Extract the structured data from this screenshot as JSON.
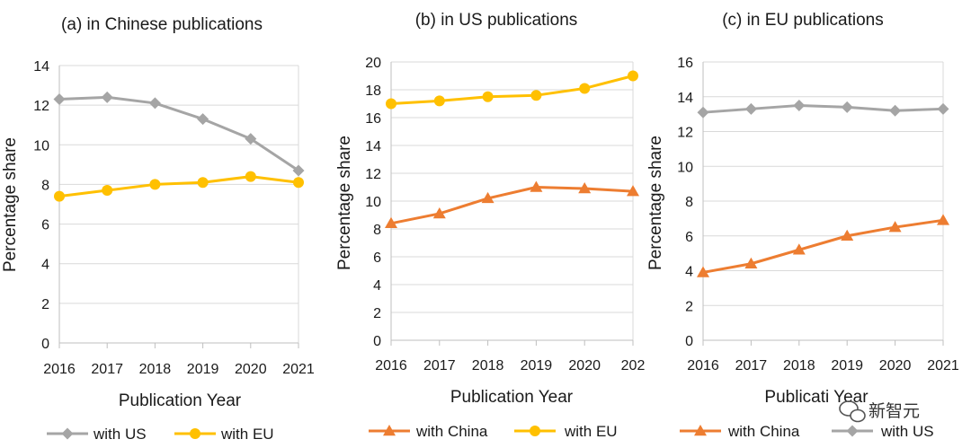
{
  "chart_data": [
    {
      "type": "line",
      "title": "(a) in Chinese publications",
      "xlabel": "Publication Year",
      "ylabel": "Percentage share",
      "x": [
        "2016",
        "2017",
        "2018",
        "2019",
        "2020",
        "2021"
      ],
      "y_ticks": [
        "0",
        "2",
        "4",
        "6",
        "8",
        "10",
        "12",
        "14"
      ],
      "ylim": [
        0,
        14
      ],
      "grid": true,
      "legend": "bottom",
      "series": [
        {
          "name": "with US",
          "color": "#a5a5a5",
          "marker": "diamond",
          "values": [
            12.3,
            12.4,
            12.1,
            11.3,
            10.3,
            8.7
          ]
        },
        {
          "name": "with EU",
          "color": "#ffc000",
          "marker": "circle",
          "values": [
            7.4,
            7.7,
            8.0,
            8.1,
            8.4,
            8.1
          ]
        }
      ]
    },
    {
      "type": "line",
      "title": "(b) in US publications",
      "xlabel": "Publication Year",
      "ylabel": "Percentage share",
      "x": [
        "2016",
        "2017",
        "2018",
        "2019",
        "2020",
        "202"
      ],
      "y_ticks": [
        "0",
        "2",
        "4",
        "6",
        "8",
        "10",
        "12",
        "14",
        "16",
        "18",
        "20"
      ],
      "ylim": [
        0,
        20
      ],
      "grid": true,
      "legend": "bottom",
      "series": [
        {
          "name": "with China",
          "color": "#ed7d31",
          "marker": "triangle",
          "values": [
            8.4,
            9.1,
            10.2,
            11.0,
            10.9,
            10.7
          ]
        },
        {
          "name": "with EU",
          "color": "#ffc000",
          "marker": "circle",
          "values": [
            17.0,
            17.2,
            17.5,
            17.6,
            18.1,
            19.0
          ]
        }
      ]
    },
    {
      "type": "line",
      "title": "(c) in EU publications",
      "xlabel": "Publicati  Year",
      "ylabel": "Percentage share",
      "x": [
        "2016",
        "2017",
        "2018",
        "2019",
        "2020",
        "2021"
      ],
      "y_ticks": [
        "0",
        "2",
        "4",
        "6",
        "8",
        "10",
        "12",
        "14",
        "16"
      ],
      "ylim": [
        0,
        16
      ],
      "grid": true,
      "legend": "bottom",
      "series": [
        {
          "name": "with China",
          "color": "#ed7d31",
          "marker": "triangle",
          "values": [
            3.9,
            4.4,
            5.2,
            6.0,
            6.5,
            6.9
          ]
        },
        {
          "name": "with US",
          "color": "#a5a5a5",
          "marker": "diamond",
          "values": [
            13.1,
            13.3,
            13.5,
            13.4,
            13.2,
            13.3
          ]
        }
      ]
    }
  ],
  "watermark": {
    "text": "新智元",
    "icon": "wechat-icon"
  }
}
